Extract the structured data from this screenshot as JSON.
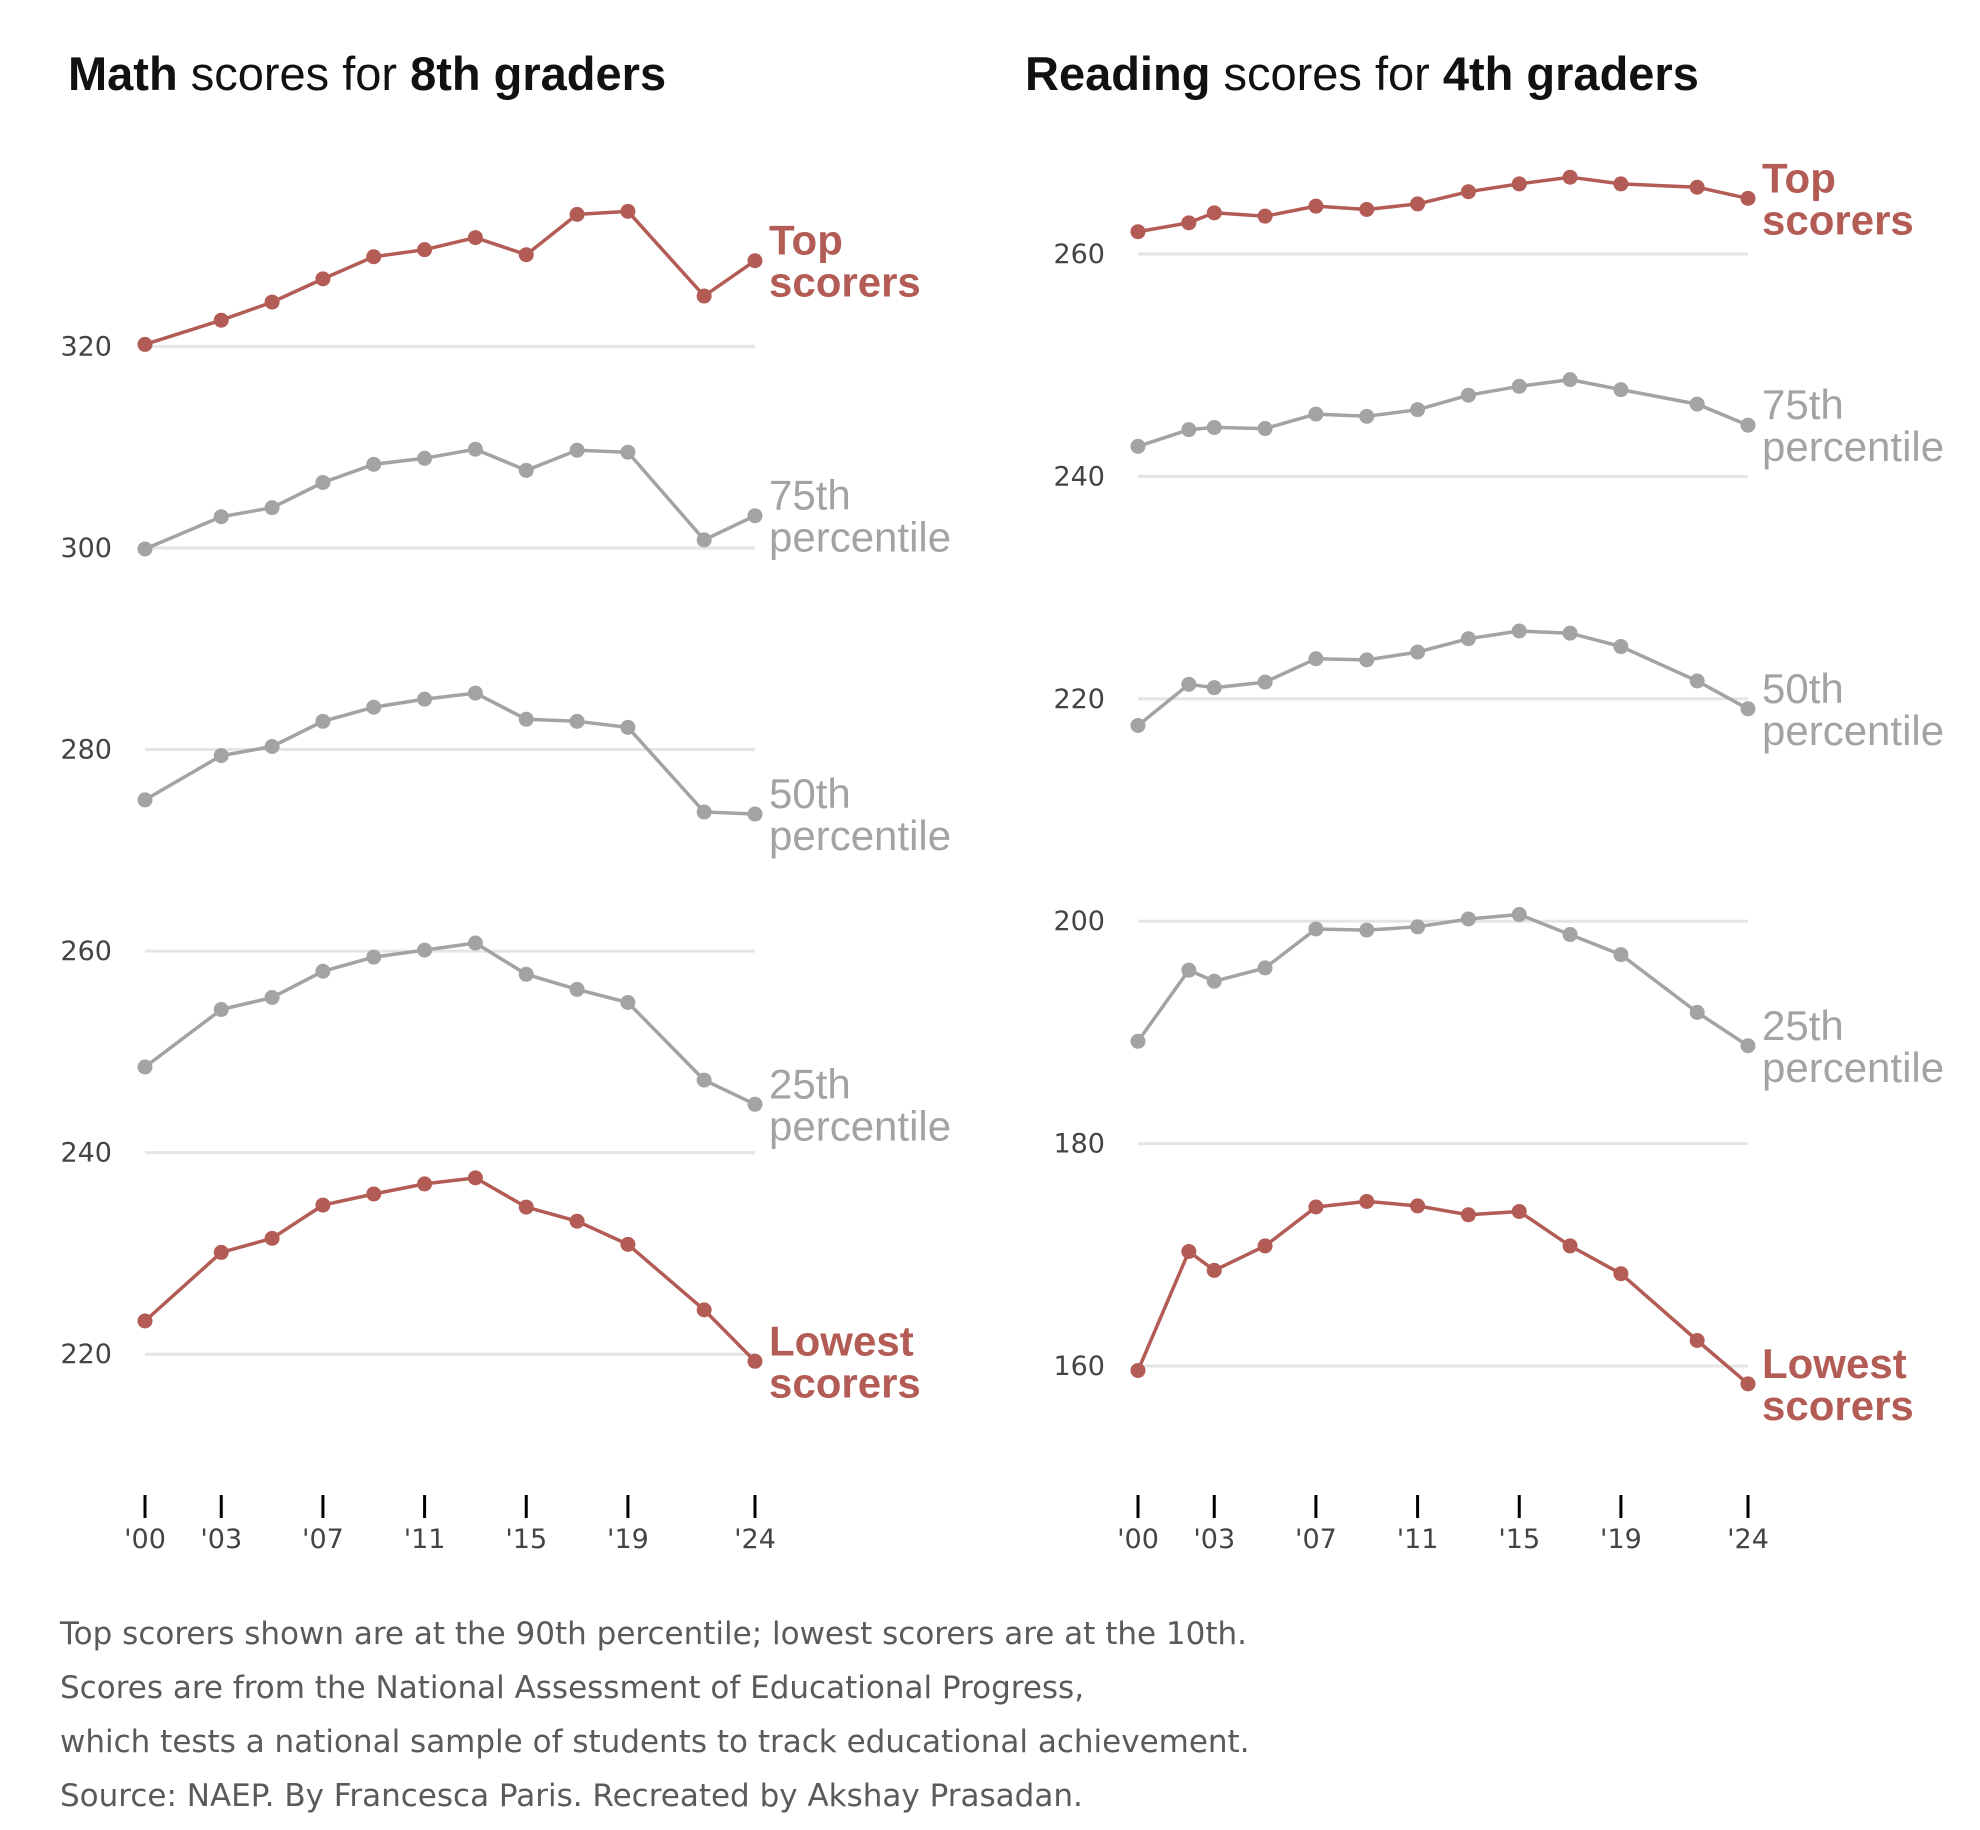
{
  "colors": {
    "highlight": "#b35c56",
    "muted": "#a3a3a3",
    "grid": "#e5e5e5",
    "axis": "#000000"
  },
  "caption": {
    "line1": "Top scorers shown are at the 90th percentile; lowest scorers are at the 10th.",
    "line2": "Scores are from the National Assessment of Educational Progress,",
    "line3": "which tests a national sample of students to track educational achievement.",
    "line4": "Source: NAEP. By Francesca Paris. Recreated by Akshay Prasadan."
  },
  "chart_data": [
    {
      "type": "line",
      "title_parts": [
        {
          "text": "Math",
          "bold": true
        },
        {
          "text": " scores for ",
          "bold": false
        },
        {
          "text": "8th graders",
          "bold": true
        }
      ],
      "xlabel": "",
      "ylabel": "",
      "xlim": [
        2000,
        2024
      ],
      "ylim": [
        210,
        338
      ],
      "yticks": [
        220,
        240,
        260,
        280,
        300,
        320
      ],
      "xticks": [
        {
          "value": 2000,
          "label": "'00"
        },
        {
          "value": 2003,
          "label": "'03"
        },
        {
          "value": 2007,
          "label": "'07"
        },
        {
          "value": 2011,
          "label": "'11"
        },
        {
          "value": 2015,
          "label": "'15"
        },
        {
          "value": 2019,
          "label": "'19"
        },
        {
          "value": 2024,
          "label": "'24"
        }
      ],
      "grid": "horizontal",
      "x": [
        2000,
        2003,
        2005,
        2007,
        2009,
        2011,
        2013,
        2015,
        2017,
        2019,
        2022,
        2024
      ],
      "series": [
        {
          "name": "Top scorers",
          "label_lines": [
            "Top",
            "scorers"
          ],
          "highlight": true,
          "values": [
            320.2,
            322.6,
            324.4,
            326.7,
            328.9,
            329.6,
            330.8,
            329.1,
            333.1,
            333.4,
            325.0,
            328.5
          ]
        },
        {
          "name": "75th percentile",
          "label_lines": [
            "75th",
            "percentile"
          ],
          "highlight": false,
          "values": [
            299.9,
            303.1,
            304.0,
            306.5,
            308.3,
            308.9,
            309.8,
            307.7,
            309.7,
            309.5,
            300.8,
            303.2
          ]
        },
        {
          "name": "50th percentile",
          "label_lines": [
            "50th",
            "percentile"
          ],
          "highlight": false,
          "values": [
            275.0,
            279.4,
            280.3,
            282.8,
            284.2,
            285.0,
            285.6,
            283.0,
            282.8,
            282.2,
            273.8,
            273.6
          ]
        },
        {
          "name": "25th percentile",
          "label_lines": [
            "25th",
            "percentile"
          ],
          "highlight": false,
          "values": [
            248.5,
            254.2,
            255.4,
            258.0,
            259.4,
            260.1,
            260.8,
            257.7,
            256.2,
            254.9,
            247.2,
            244.8
          ]
        },
        {
          "name": "Lowest scorers",
          "label_lines": [
            "Lowest",
            "scorers"
          ],
          "highlight": true,
          "values": [
            223.3,
            230.1,
            231.5,
            234.8,
            235.9,
            236.9,
            237.5,
            234.6,
            233.2,
            230.9,
            224.4,
            219.3
          ]
        }
      ]
    },
    {
      "type": "line",
      "title_parts": [
        {
          "text": "Reading",
          "bold": true
        },
        {
          "text": " scores for ",
          "bold": false
        },
        {
          "text": "4th graders",
          "bold": true
        }
      ],
      "xlabel": "",
      "ylabel": "",
      "xlim": [
        2000,
        2024
      ],
      "ylim": [
        152,
        268
      ],
      "yticks": [
        160,
        180,
        200,
        220,
        240,
        260
      ],
      "xticks": [
        {
          "value": 2000,
          "label": "'00"
        },
        {
          "value": 2003,
          "label": "'03"
        },
        {
          "value": 2007,
          "label": "'07"
        },
        {
          "value": 2011,
          "label": "'11"
        },
        {
          "value": 2015,
          "label": "'15"
        },
        {
          "value": 2019,
          "label": "'19"
        },
        {
          "value": 2024,
          "label": "'24"
        }
      ],
      "grid": "horizontal",
      "x": [
        2000,
        2002,
        2003,
        2005,
        2007,
        2009,
        2011,
        2013,
        2015,
        2017,
        2019,
        2022,
        2024
      ],
      "series": [
        {
          "name": "Top scorers",
          "label_lines": [
            "Top",
            "scorers"
          ],
          "highlight": true,
          "values": [
            262.0,
            262.8,
            263.7,
            263.4,
            264.3,
            264.0,
            264.5,
            265.6,
            266.3,
            266.9,
            266.3,
            266.0,
            265.0
          ]
        },
        {
          "name": "75th percentile",
          "label_lines": [
            "75th",
            "percentile"
          ],
          "highlight": false,
          "values": [
            242.7,
            244.2,
            244.4,
            244.3,
            245.6,
            245.4,
            246.0,
            247.3,
            248.1,
            248.7,
            247.8,
            246.5,
            244.6
          ]
        },
        {
          "name": "50th percentile",
          "label_lines": [
            "50th",
            "percentile"
          ],
          "highlight": false,
          "values": [
            217.6,
            221.3,
            221.0,
            221.5,
            223.6,
            223.5,
            224.2,
            225.4,
            226.1,
            225.9,
            224.7,
            221.6,
            219.1
          ]
        },
        {
          "name": "25th percentile",
          "label_lines": [
            "25th",
            "percentile"
          ],
          "highlight": false,
          "values": [
            189.2,
            195.6,
            194.6,
            195.8,
            199.3,
            199.2,
            199.5,
            200.2,
            200.6,
            198.8,
            197.0,
            191.8,
            188.8
          ]
        },
        {
          "name": "Lowest scorers",
          "label_lines": [
            "Lowest",
            "scorers"
          ],
          "highlight": true,
          "values": [
            159.6,
            170.3,
            168.6,
            170.8,
            174.3,
            174.8,
            174.4,
            173.6,
            173.9,
            170.8,
            168.3,
            162.3,
            158.4
          ]
        }
      ]
    }
  ]
}
